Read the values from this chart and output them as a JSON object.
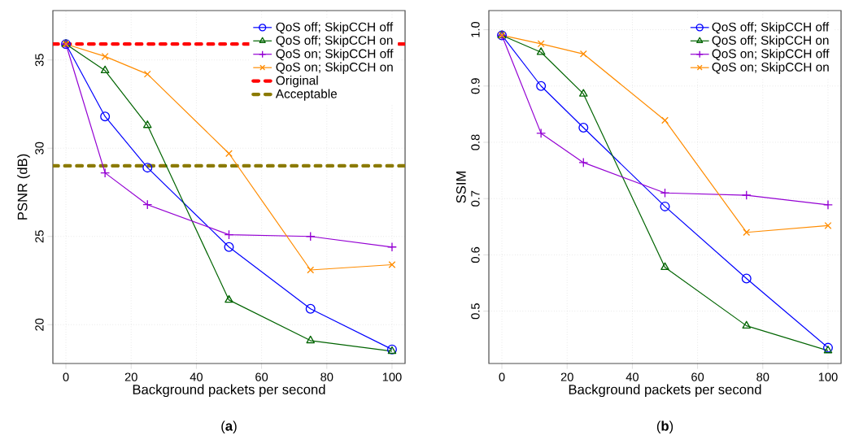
{
  "chart_data": [
    {
      "type": "line",
      "title": "(**a**)",
      "xlabel": "Background packets per second",
      "ylabel": "PSNR (dB)",
      "x": [
        0,
        12,
        25,
        50,
        75,
        100
      ],
      "series": [
        {
          "name": "QoS off; SkipCCH off",
          "color": "#0000ff",
          "marker": "circle",
          "values": [
            35.9,
            31.8,
            28.9,
            24.4,
            20.9,
            18.6
          ]
        },
        {
          "name": "QoS off; SkipCCH on",
          "color": "#006400",
          "marker": "triangle",
          "values": [
            35.9,
            34.4,
            31.3,
            21.4,
            19.1,
            18.5
          ]
        },
        {
          "name": "QoS on; SkipCCH off",
          "color": "#9400d3",
          "marker": "plus",
          "values": [
            35.9,
            28.6,
            26.8,
            25.1,
            25.0,
            24.4
          ]
        },
        {
          "name": "QoS on; SkipCCH on",
          "color": "#ff8c00",
          "marker": "cross",
          "values": [
            35.9,
            35.2,
            34.2,
            29.7,
            23.1,
            23.4
          ]
        }
      ],
      "ref_lines": [
        {
          "axis": "y",
          "value": 35.9,
          "label": "Original",
          "color": "#ff0000",
          "line_style": "dashed"
        },
        {
          "axis": "y",
          "value": 29.0,
          "label": "Acceptable",
          "color": "#8b7a00",
          "line_style": "dashed"
        }
      ],
      "xlim": [
        -4,
        104
      ],
      "ylim": [
        17.8,
        37.8
      ],
      "xticks": [
        0,
        20,
        40,
        60,
        80,
        100
      ],
      "yticks": [
        20,
        25,
        30,
        35
      ],
      "grid": true,
      "legend": "top right"
    },
    {
      "type": "line",
      "title": "(**b**)",
      "xlabel": "Background packets per second",
      "ylabel": "SSIM",
      "x": [
        0,
        12,
        25,
        50,
        75,
        100
      ],
      "series": [
        {
          "name": "QoS off; SkipCCH off",
          "color": "#0000ff",
          "marker": "circle",
          "values": [
            0.99,
            0.9,
            0.826,
            0.686,
            0.558,
            0.435
          ]
        },
        {
          "name": "QoS off; SkipCCH on",
          "color": "#006400",
          "marker": "triangle",
          "values": [
            0.99,
            0.96,
            0.886,
            0.578,
            0.474,
            0.43
          ]
        },
        {
          "name": "QoS on; SkipCCH off",
          "color": "#9400d3",
          "marker": "plus",
          "values": [
            0.99,
            0.816,
            0.764,
            0.71,
            0.706,
            0.689
          ]
        },
        {
          "name": "QoS on; SkipCCH on",
          "color": "#ff8c00",
          "marker": "cross",
          "values": [
            0.99,
            0.975,
            0.957,
            0.839,
            0.64,
            0.652
          ]
        }
      ],
      "xlim": [
        -4,
        104
      ],
      "ylim": [
        0.407,
        1.034
      ],
      "xticks": [
        0,
        20,
        40,
        60,
        80,
        100
      ],
      "yticks": [
        {
          "value": 0.5,
          "label": "0.5"
        },
        {
          "value": 0.6,
          "label": "0.6"
        },
        {
          "value": 0.7,
          "label": "0.7"
        },
        {
          "value": 0.8,
          "label": "0.8"
        },
        {
          "value": 0.9,
          "label": "0.9"
        },
        {
          "value": 1.0,
          "label": "1.0"
        }
      ],
      "grid": true,
      "legend": "top right"
    }
  ]
}
